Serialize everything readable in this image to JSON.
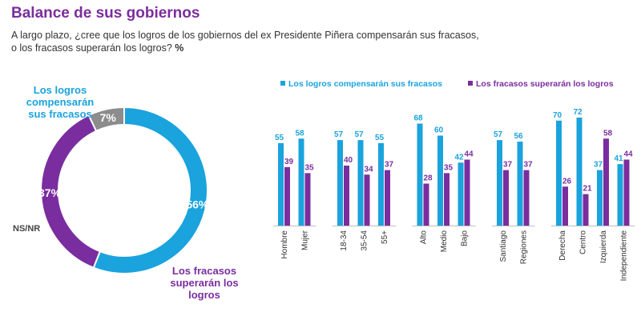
{
  "header": {
    "title": "Balance de sus gobiernos",
    "subtitle_line1": "A largo plazo, ¿cree que los logros de los gobiernos del ex Presidente Piñera compensarán sus fracasos,",
    "subtitle_line2": "o los fracasos superarán los logros?",
    "subtitle_unit": "%"
  },
  "colors": {
    "blue": "#1aa3dd",
    "purple": "#7a2d9f",
    "gray": "#8c8c8c",
    "title": "#7b2d9c"
  },
  "chart_data": [
    {
      "type": "pie",
      "variant": "donut",
      "slices": [
        {
          "label": "Los logros compensarán sus fracasos",
          "value": 56,
          "value_label": "56%",
          "color": "#1aa3dd"
        },
        {
          "label": "Los fracasos superarán los logros",
          "value": 37,
          "value_label": "37%",
          "color": "#7a2d9f"
        },
        {
          "label": "NS/NR",
          "value": 7,
          "value_label": "7%",
          "color": "#8c8c8c"
        }
      ],
      "callouts": {
        "logros": [
          "Los logros",
          "compensarán",
          "sus fracasos"
        ],
        "fracasos": [
          "Los fracasos",
          "superarán los",
          "logros"
        ],
        "nsnr": "NS/NR"
      }
    },
    {
      "type": "bar",
      "legend": [
        "Los logros compensarán sus fracasos",
        "Los fracasos superarán los logros"
      ],
      "legend_position": "top",
      "categories": [
        "Hombre",
        "Mujer",
        "18-34",
        "35-54",
        "55+",
        "Alto",
        "Medio",
        "Bajo",
        "Santiago",
        "Regiones",
        "Derecha",
        "Centro",
        "Izquierda",
        "Independiente"
      ],
      "groups": [
        2,
        3,
        3,
        2,
        4
      ],
      "series": [
        {
          "name": "Los logros compensarán sus fracasos",
          "color": "#1aa3dd",
          "values": [
            55,
            58,
            57,
            57,
            55,
            68,
            60,
            42,
            57,
            56,
            70,
            72,
            37,
            41
          ]
        },
        {
          "name": "Los fracasos superarán los logros",
          "color": "#7a2d9f",
          "values": [
            39,
            35,
            40,
            34,
            37,
            28,
            35,
            44,
            37,
            37,
            26,
            21,
            58,
            44
          ]
        }
      ],
      "ylim": [
        0,
        100
      ]
    }
  ]
}
